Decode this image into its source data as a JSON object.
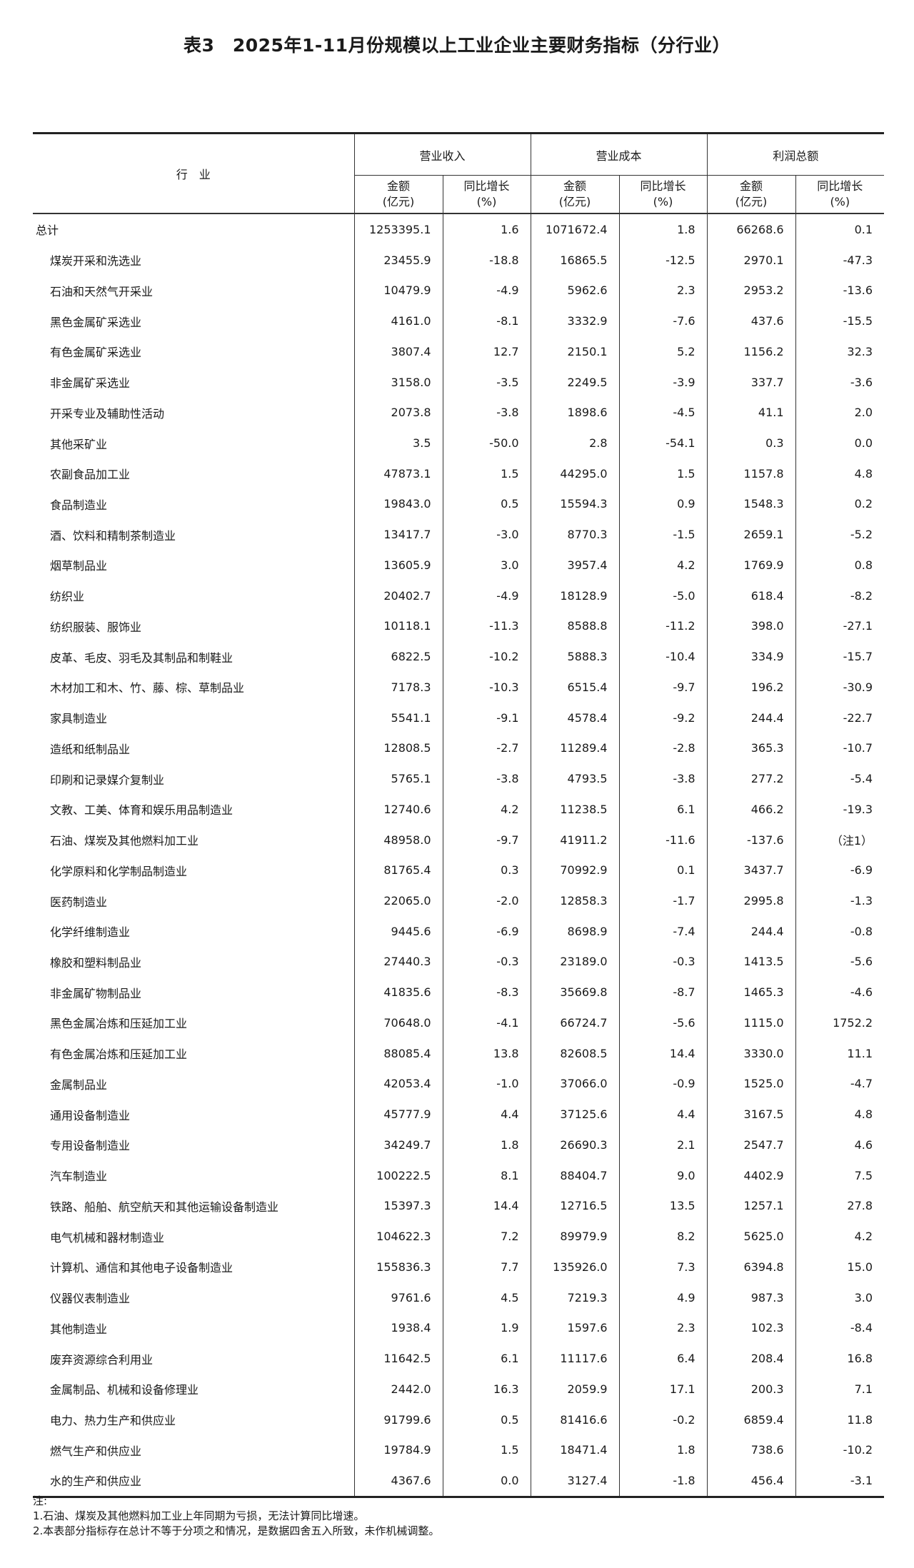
{
  "title": "表3　2025年1-11月份规模以上工业企业主要财务指标（分行业）",
  "header": {
    "industry": "行　业",
    "groups": [
      "营业收入",
      "营业成本",
      "利润总额"
    ],
    "amount_line1": "金额",
    "amount_line2": "(亿元)",
    "growth_line1": "同比增长",
    "growth_line2": "(%)"
  },
  "rows": [
    [
      "总计",
      "1253395.1",
      "1.6",
      "1071672.4",
      "1.8",
      "66268.6",
      "0.1"
    ],
    [
      "煤炭开采和洗选业",
      "23455.9",
      "-18.8",
      "16865.5",
      "-12.5",
      "2970.1",
      "-47.3"
    ],
    [
      "石油和天然气开采业",
      "10479.9",
      "-4.9",
      "5962.6",
      "2.3",
      "2953.2",
      "-13.6"
    ],
    [
      "黑色金属矿采选业",
      "4161.0",
      "-8.1",
      "3332.9",
      "-7.6",
      "437.6",
      "-15.5"
    ],
    [
      "有色金属矿采选业",
      "3807.4",
      "12.7",
      "2150.1",
      "5.2",
      "1156.2",
      "32.3"
    ],
    [
      "非金属矿采选业",
      "3158.0",
      "-3.5",
      "2249.5",
      "-3.9",
      "337.7",
      "-3.6"
    ],
    [
      "开采专业及辅助性活动",
      "2073.8",
      "-3.8",
      "1898.6",
      "-4.5",
      "41.1",
      "2.0"
    ],
    [
      "其他采矿业",
      "3.5",
      "-50.0",
      "2.8",
      "-54.1",
      "0.3",
      "0.0"
    ],
    [
      "农副食品加工业",
      "47873.1",
      "1.5",
      "44295.0",
      "1.5",
      "1157.8",
      "4.8"
    ],
    [
      "食品制造业",
      "19843.0",
      "0.5",
      "15594.3",
      "0.9",
      "1548.3",
      "0.2"
    ],
    [
      "酒、饮料和精制茶制造业",
      "13417.7",
      "-3.0",
      "8770.3",
      "-1.5",
      "2659.1",
      "-5.2"
    ],
    [
      "烟草制品业",
      "13605.9",
      "3.0",
      "3957.4",
      "4.2",
      "1769.9",
      "0.8"
    ],
    [
      "纺织业",
      "20402.7",
      "-4.9",
      "18128.9",
      "-5.0",
      "618.4",
      "-8.2"
    ],
    [
      "纺织服装、服饰业",
      "10118.1",
      "-11.3",
      "8588.8",
      "-11.2",
      "398.0",
      "-27.1"
    ],
    [
      "皮革、毛皮、羽毛及其制品和制鞋业",
      "6822.5",
      "-10.2",
      "5888.3",
      "-10.4",
      "334.9",
      "-15.7"
    ],
    [
      "木材加工和木、竹、藤、棕、草制品业",
      "7178.3",
      "-10.3",
      "6515.4",
      "-9.7",
      "196.2",
      "-30.9"
    ],
    [
      "家具制造业",
      "5541.1",
      "-9.1",
      "4578.4",
      "-9.2",
      "244.4",
      "-22.7"
    ],
    [
      "造纸和纸制品业",
      "12808.5",
      "-2.7",
      "11289.4",
      "-2.8",
      "365.3",
      "-10.7"
    ],
    [
      "印刷和记录媒介复制业",
      "5765.1",
      "-3.8",
      "4793.5",
      "-3.8",
      "277.2",
      "-5.4"
    ],
    [
      "文教、工美、体育和娱乐用品制造业",
      "12740.6",
      "4.2",
      "11238.5",
      "6.1",
      "466.2",
      "-19.3"
    ],
    [
      "石油、煤炭及其他燃料加工业",
      "48958.0",
      "-9.7",
      "41911.2",
      "-11.6",
      "-137.6",
      "（注1）"
    ],
    [
      "化学原料和化学制品制造业",
      "81765.4",
      "0.3",
      "70992.9",
      "0.1",
      "3437.7",
      "-6.9"
    ],
    [
      "医药制造业",
      "22065.0",
      "-2.0",
      "12858.3",
      "-1.7",
      "2995.8",
      "-1.3"
    ],
    [
      "化学纤维制造业",
      "9445.6",
      "-6.9",
      "8698.9",
      "-7.4",
      "244.4",
      "-0.8"
    ],
    [
      "橡胶和塑料制品业",
      "27440.3",
      "-0.3",
      "23189.0",
      "-0.3",
      "1413.5",
      "-5.6"
    ],
    [
      "非金属矿物制品业",
      "41835.6",
      "-8.3",
      "35669.8",
      "-8.7",
      "1465.3",
      "-4.6"
    ],
    [
      "黑色金属冶炼和压延加工业",
      "70648.0",
      "-4.1",
      "66724.7",
      "-5.6",
      "1115.0",
      "1752.2"
    ],
    [
      "有色金属冶炼和压延加工业",
      "88085.4",
      "13.8",
      "82608.5",
      "14.4",
      "3330.0",
      "11.1"
    ],
    [
      "金属制品业",
      "42053.4",
      "-1.0",
      "37066.0",
      "-0.9",
      "1525.0",
      "-4.7"
    ],
    [
      "通用设备制造业",
      "45777.9",
      "4.4",
      "37125.6",
      "4.4",
      "3167.5",
      "4.8"
    ],
    [
      "专用设备制造业",
      "34249.7",
      "1.8",
      "26690.3",
      "2.1",
      "2547.7",
      "4.6"
    ],
    [
      "汽车制造业",
      "100222.5",
      "8.1",
      "88404.7",
      "9.0",
      "4402.9",
      "7.5"
    ],
    [
      "铁路、船舶、航空航天和其他运输设备制造业",
      "15397.3",
      "14.4",
      "12716.5",
      "13.5",
      "1257.1",
      "27.8"
    ],
    [
      "电气机械和器材制造业",
      "104622.3",
      "7.2",
      "89979.9",
      "8.2",
      "5625.0",
      "4.2"
    ],
    [
      "计算机、通信和其他电子设备制造业",
      "155836.3",
      "7.7",
      "135926.0",
      "7.3",
      "6394.8",
      "15.0"
    ],
    [
      "仪器仪表制造业",
      "9761.6",
      "4.5",
      "7219.3",
      "4.9",
      "987.3",
      "3.0"
    ],
    [
      "其他制造业",
      "1938.4",
      "1.9",
      "1597.6",
      "2.3",
      "102.3",
      "-8.4"
    ],
    [
      "废弃资源综合利用业",
      "11642.5",
      "6.1",
      "11117.6",
      "6.4",
      "208.4",
      "16.8"
    ],
    [
      "金属制品、机械和设备修理业",
      "2442.0",
      "16.3",
      "2059.9",
      "17.1",
      "200.3",
      "7.1"
    ],
    [
      "电力、热力生产和供应业",
      "91799.6",
      "0.5",
      "81416.6",
      "-0.2",
      "6859.4",
      "11.8"
    ],
    [
      "燃气生产和供应业",
      "19784.9",
      "1.5",
      "18471.4",
      "1.8",
      "738.6",
      "-10.2"
    ],
    [
      "水的生产和供应业",
      "4367.6",
      "0.0",
      "3127.4",
      "-1.8",
      "456.4",
      "-3.1"
    ]
  ],
  "notes": {
    "label": "注:",
    "items": [
      "1.石油、煤炭及其他燃料加工业上年同期为亏损，无法计算同比增速。",
      "2.本表部分指标存在总计不等于分项之和情况，是数据四舍五入所致，未作机械调整。"
    ]
  }
}
